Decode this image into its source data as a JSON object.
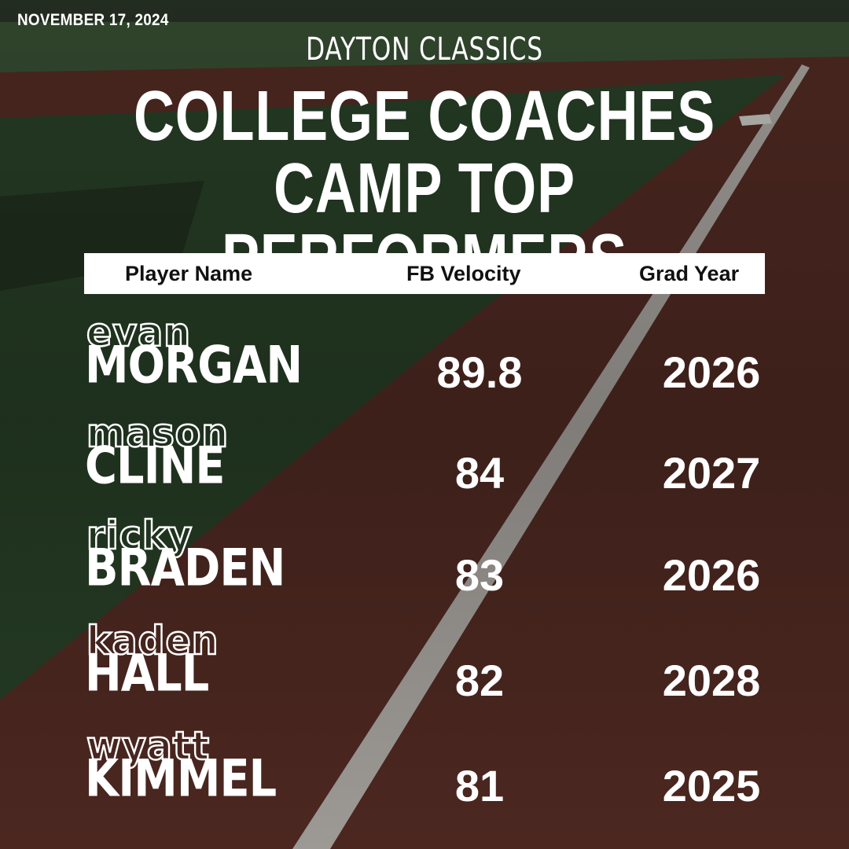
{
  "date": "NOVEMBER 17, 2024",
  "organization": "DAYTON CLASSICS",
  "title_line1": "COLLEGE COACHES",
  "title_line2": "CAMP TOP PERFORMERS",
  "table": {
    "headers": [
      "Player Name",
      "FB Velocity",
      "Grad Year"
    ],
    "rows": [
      {
        "first": "evan",
        "last": "MORGAN",
        "velocity": "89.8",
        "grad_year": "2026"
      },
      {
        "first": "mason",
        "last": "CLINE",
        "velocity": "84",
        "grad_year": "2027"
      },
      {
        "first": "ricky",
        "last": "BRADEN",
        "velocity": "83",
        "grad_year": "2026"
      },
      {
        "first": "kaden",
        "last": "HALL",
        "velocity": "82",
        "grad_year": "2028"
      },
      {
        "first": "wyatt",
        "last": "KIMMEL",
        "velocity": "81",
        "grad_year": "2025"
      }
    ]
  },
  "colors": {
    "turf_green": "#2d4a2c",
    "infield_clay": "#5a2e24",
    "foul_line": "#d8d8d2",
    "text": "#ffffff",
    "header_bar": "#ffffff"
  }
}
